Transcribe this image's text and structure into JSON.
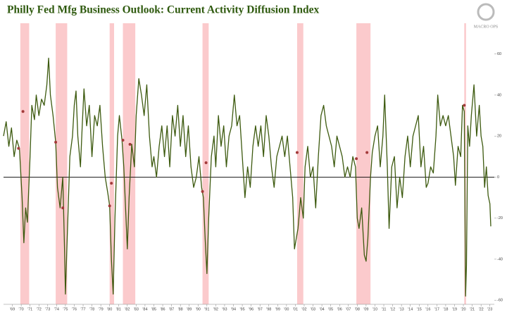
{
  "chart_data": {
    "type": "line",
    "title": "Philly Fed Mfg Business Outlook: Current Activity Diffusion Index",
    "logo_text": "MACRO OPS",
    "xlim": [
      1968.0,
      2023.5
    ],
    "ylim": [
      -62,
      75
    ],
    "yticks": [
      -60,
      -40,
      -20,
      0,
      20,
      40,
      60
    ],
    "xticks": [
      {
        "value": 1969,
        "label": "'69"
      },
      {
        "value": 1970,
        "label": "'70"
      },
      {
        "value": 1971,
        "label": "'71"
      },
      {
        "value": 1972,
        "label": "'72"
      },
      {
        "value": 1973,
        "label": "'73"
      },
      {
        "value": 1974,
        "label": "'74"
      },
      {
        "value": 1975,
        "label": "'75"
      },
      {
        "value": 1976,
        "label": "'76"
      },
      {
        "value": 1977,
        "label": "'77"
      },
      {
        "value": 1978,
        "label": "'78"
      },
      {
        "value": 1979,
        "label": "'79"
      },
      {
        "value": 1980,
        "label": "'80"
      },
      {
        "value": 1981,
        "label": "'81"
      },
      {
        "value": 1982,
        "label": "'82"
      },
      {
        "value": 1983,
        "label": "'83"
      },
      {
        "value": 1984,
        "label": "'84"
      },
      {
        "value": 1985,
        "label": "'85"
      },
      {
        "value": 1986,
        "label": "'86"
      },
      {
        "value": 1987,
        "label": "'87"
      },
      {
        "value": 1988,
        "label": "'88"
      },
      {
        "value": 1989,
        "label": "'89"
      },
      {
        "value": 1990,
        "label": "'90"
      },
      {
        "value": 1991,
        "label": "'91"
      },
      {
        "value": 1992,
        "label": "'92"
      },
      {
        "value": 1993,
        "label": "'93"
      },
      {
        "value": 1994,
        "label": "'94"
      },
      {
        "value": 1995,
        "label": "'95"
      },
      {
        "value": 1996,
        "label": "'96"
      },
      {
        "value": 1997,
        "label": "'97"
      },
      {
        "value": 1998,
        "label": "'98"
      },
      {
        "value": 1999,
        "label": "'99"
      },
      {
        "value": 2000,
        "label": "'00"
      },
      {
        "value": 2001,
        "label": "'01"
      },
      {
        "value": 2002,
        "label": "'02"
      },
      {
        "value": 2003,
        "label": "'03"
      },
      {
        "value": 2004,
        "label": "'04"
      },
      {
        "value": 2005,
        "label": "'05"
      },
      {
        "value": 2006,
        "label": "'06"
      },
      {
        "value": 2007,
        "label": "'07"
      },
      {
        "value": 2008,
        "label": "'08"
      },
      {
        "value": 2009,
        "label": "'09"
      },
      {
        "value": 2010,
        "label": "'10"
      },
      {
        "value": 2011,
        "label": "'11"
      },
      {
        "value": 2012,
        "label": "'12"
      },
      {
        "value": 2013,
        "label": "'13"
      },
      {
        "value": 2014,
        "label": "'14"
      },
      {
        "value": 2015,
        "label": "'15"
      },
      {
        "value": 2016,
        "label": "'16"
      },
      {
        "value": 2017,
        "label": "'17"
      },
      {
        "value": 2018,
        "label": "'18"
      },
      {
        "value": 2019,
        "label": "'19"
      },
      {
        "value": 2020,
        "label": "'20"
      },
      {
        "value": 2021,
        "label": "'21"
      },
      {
        "value": 2022,
        "label": "'22"
      },
      {
        "value": 2023,
        "label": "'23"
      }
    ],
    "shaded_periods": [
      {
        "start": 1969.9,
        "end": 1970.9
      },
      {
        "start": 1973.9,
        "end": 1975.2
      },
      {
        "start": 1980.0,
        "end": 1980.5
      },
      {
        "start": 1981.5,
        "end": 1982.9
      },
      {
        "start": 1990.5,
        "end": 1991.2
      },
      {
        "start": 2001.2,
        "end": 2001.9
      },
      {
        "start": 2007.9,
        "end": 2009.5
      },
      {
        "start": 2020.1,
        "end": 2020.3
      }
    ],
    "shade_color": "#f9b8bb",
    "series": [
      {
        "color": "#3d5a0f",
        "x": [
          1968.0,
          1968.3,
          1968.6,
          1968.9,
          1969.2,
          1969.5,
          1969.8,
          1970.1,
          1970.3,
          1970.5,
          1970.7,
          1971.0,
          1971.2,
          1971.5,
          1971.7,
          1972.0,
          1972.3,
          1972.6,
          1972.9,
          1973.1,
          1973.3,
          1973.6,
          1973.9,
          1974.1,
          1974.4,
          1974.7,
          1974.9,
          1975.0,
          1975.2,
          1975.5,
          1975.8,
          1976.0,
          1976.2,
          1976.4,
          1976.7,
          1976.9,
          1977.1,
          1977.4,
          1977.7,
          1978.0,
          1978.3,
          1978.6,
          1978.9,
          1979.2,
          1979.5,
          1979.8,
          1980.0,
          1980.2,
          1980.4,
          1980.6,
          1980.9,
          1981.1,
          1981.4,
          1981.6,
          1981.8,
          1982.0,
          1982.2,
          1982.5,
          1982.8,
          1983.0,
          1983.3,
          1983.6,
          1983.9,
          1984.2,
          1984.5,
          1984.8,
          1985.0,
          1985.3,
          1985.6,
          1985.9,
          1986.2,
          1986.5,
          1986.8,
          1987.1,
          1987.4,
          1987.7,
          1988.0,
          1988.3,
          1988.6,
          1988.9,
          1989.2,
          1989.5,
          1989.8,
          1990.1,
          1990.4,
          1990.6,
          1990.8,
          1991.0,
          1991.2,
          1991.5,
          1991.8,
          1992.0,
          1992.3,
          1992.6,
          1992.9,
          1993.2,
          1993.5,
          1993.8,
          1994.1,
          1994.4,
          1994.7,
          1995.0,
          1995.3,
          1995.6,
          1995.9,
          1996.2,
          1996.5,
          1996.8,
          1997.1,
          1997.4,
          1997.7,
          1998.0,
          1998.3,
          1998.6,
          1998.9,
          1999.2,
          1999.5,
          1999.8,
          2000.1,
          2000.4,
          2000.7,
          2000.9,
          2001.1,
          2001.3,
          2001.6,
          2001.9,
          2002.1,
          2002.4,
          2002.7,
          2003.0,
          2003.3,
          2003.6,
          2003.9,
          2004.2,
          2004.5,
          2004.8,
          2005.1,
          2005.4,
          2005.7,
          2006.0,
          2006.3,
          2006.6,
          2006.9,
          2007.2,
          2007.5,
          2007.8,
          2008.0,
          2008.2,
          2008.5,
          2008.8,
          2009.0,
          2009.2,
          2009.5,
          2009.7,
          2010.0,
          2010.3,
          2010.6,
          2010.9,
          2011.1,
          2011.4,
          2011.6,
          2011.9,
          2012.2,
          2012.5,
          2012.8,
          2013.1,
          2013.4,
          2013.7,
          2014.0,
          2014.3,
          2014.6,
          2014.9,
          2015.2,
          2015.5,
          2015.8,
          2016.0,
          2016.3,
          2016.6,
          2016.9,
          2017.1,
          2017.4,
          2017.7,
          2018.0,
          2018.3,
          2018.6,
          2018.9,
          2019.1,
          2019.4,
          2019.7,
          2019.9,
          2020.1,
          2020.25,
          2020.35,
          2020.5,
          2020.7,
          2020.9,
          2021.2,
          2021.5,
          2021.8,
          2022.0,
          2022.2,
          2022.4,
          2022.6,
          2022.8,
          2023.0,
          2023.1
        ],
        "values": [
          20,
          27,
          15,
          24,
          10,
          18,
          14,
          -10,
          -32,
          -15,
          -22,
          10,
          35,
          28,
          40,
          30,
          38,
          35,
          45,
          58,
          40,
          30,
          17,
          -5,
          -15,
          0,
          -35,
          -57,
          -30,
          10,
          20,
          35,
          42,
          20,
          5,
          25,
          43,
          25,
          35,
          10,
          30,
          25,
          35,
          15,
          0,
          -8,
          -14,
          -40,
          -57,
          -20,
          20,
          30,
          18,
          5,
          -15,
          -35,
          -10,
          16,
          5,
          30,
          48,
          40,
          30,
          45,
          20,
          5,
          10,
          0,
          15,
          25,
          10,
          25,
          5,
          30,
          20,
          35,
          15,
          30,
          10,
          25,
          5,
          -5,
          0,
          10,
          -5,
          -10,
          -30,
          -47,
          -20,
          10,
          20,
          5,
          30,
          15,
          25,
          5,
          20,
          25,
          40,
          25,
          30,
          10,
          -10,
          5,
          -5,
          15,
          25,
          15,
          25,
          10,
          30,
          20,
          5,
          -5,
          10,
          15,
          20,
          10,
          20,
          5,
          -10,
          -35,
          -30,
          -25,
          -10,
          -20,
          5,
          15,
          0,
          5,
          -15,
          10,
          30,
          35,
          25,
          20,
          15,
          5,
          20,
          15,
          10,
          0,
          5,
          0,
          10,
          5,
          -20,
          -25,
          -15,
          -38,
          -41,
          -30,
          0,
          12,
          20,
          25,
          5,
          20,
          40,
          5,
          -25,
          5,
          10,
          -15,
          0,
          -10,
          10,
          20,
          5,
          20,
          25,
          30,
          5,
          15,
          -5,
          -3,
          5,
          2,
          20,
          40,
          25,
          30,
          25,
          30,
          20,
          10,
          -4,
          15,
          10,
          35,
          32,
          -58,
          -43,
          25,
          15,
          30,
          45,
          20,
          35,
          20,
          15,
          -5,
          5,
          -9,
          -13,
          -24
        ]
      }
    ],
    "markers": {
      "color": "#a33a3a",
      "x": [
        1969.7,
        1970.2,
        1973.9,
        1974.7,
        1980.0,
        1980.2,
        1981.5,
        1982.3,
        1990.5,
        1990.9,
        2001.2,
        2007.9,
        2009.1,
        2020.1
      ],
      "values": [
        14,
        32,
        17,
        -15,
        -14,
        -3,
        18,
        16,
        -7,
        7,
        12,
        9,
        12,
        35
      ]
    }
  }
}
